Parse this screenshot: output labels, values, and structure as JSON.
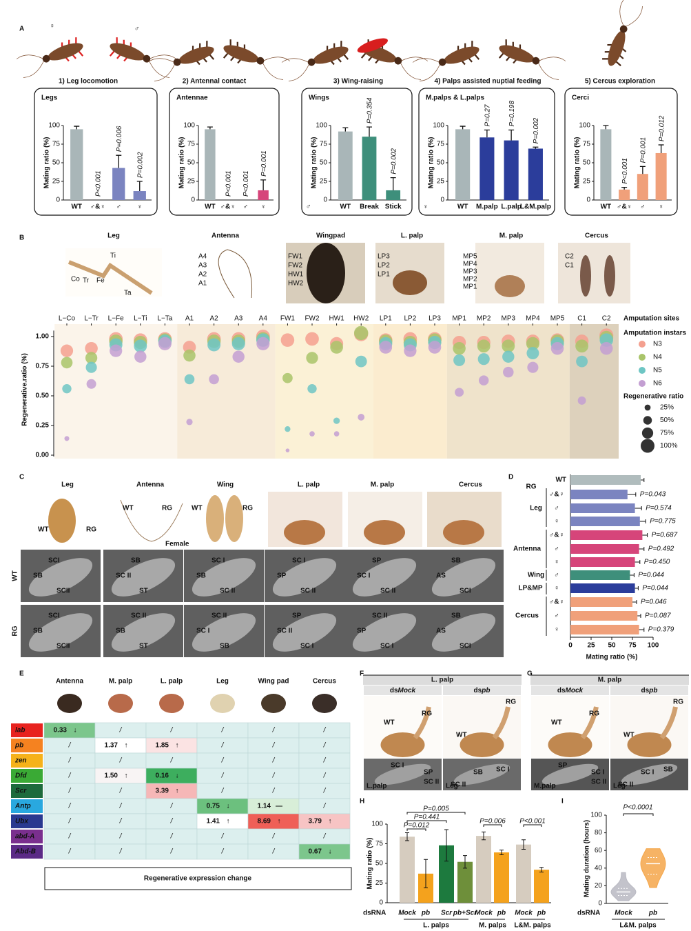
{
  "panel_letters": [
    "A",
    "B",
    "C",
    "D",
    "E",
    "F",
    "G",
    "H",
    "I"
  ],
  "panel_A": {
    "symbols": [
      "♀",
      "♂"
    ]
  },
  "chart_data": [
    {
      "type": "bar",
      "title": "1) Leg locomotion",
      "box_label": "Legs",
      "y_label": "Mating ratio (%)",
      "categories": [
        "WT",
        "♂&♀",
        "♂",
        "♀"
      ],
      "values": [
        95,
        0,
        43,
        12
      ],
      "errors": [
        4,
        0,
        17,
        13
      ],
      "p_values": [
        null,
        "P<0.001",
        "P=0.006",
        "P=0.002"
      ],
      "colors": [
        "#a9b6b8",
        "#7b84c0",
        "#7b84c0",
        "#7b84c0"
      ],
      "ylim": [
        0,
        100
      ],
      "yticks": [
        0,
        25,
        50,
        75,
        100
      ]
    },
    {
      "type": "bar",
      "title": "2) Antennal contact",
      "box_label": "Antennae",
      "y_label": "Mating ratio (%)",
      "categories": [
        "WT",
        "♂&♀",
        "♂",
        "♀"
      ],
      "values": [
        95,
        0,
        0,
        13
      ],
      "errors": [
        3,
        0,
        0,
        14
      ],
      "p_values": [
        null,
        "P<0.001",
        "P<0.001",
        "P=0.001"
      ],
      "colors": [
        "#a9b6b8",
        "#d6457a",
        "#d6457a",
        "#d6457a"
      ],
      "ylim": [
        0,
        100
      ],
      "yticks": [
        0,
        25,
        50,
        75,
        100
      ]
    },
    {
      "type": "bar",
      "title": "3) Wing-raising",
      "box_label": "Wings",
      "y_label": "Mating ratio (%)",
      "note": "♂",
      "categories": [
        "WT",
        "Break",
        "Stick"
      ],
      "values": [
        92,
        85,
        13
      ],
      "errors": [
        5,
        13,
        17
      ],
      "p_values": [
        null,
        "P=0.354",
        "P=0.002"
      ],
      "colors": [
        "#a9b6b8",
        "#3e8f7b",
        "#3e8f7b"
      ],
      "ylim": [
        0,
        100
      ],
      "yticks": [
        0,
        25,
        50,
        75,
        100
      ]
    },
    {
      "type": "bar",
      "title": "4) Palps assisted nuptial feeding",
      "box_label": "M.palps & L.palps",
      "y_label": "Mating ratio (%)",
      "note": "♀",
      "categories": [
        "WT",
        "M.palp",
        "L.palp",
        "L&M.palp"
      ],
      "values": [
        95,
        84,
        80,
        69
      ],
      "errors": [
        4,
        10,
        14,
        2
      ],
      "p_values": [
        null,
        "P=0.27",
        "P=0.198",
        "P=0.002"
      ],
      "colors": [
        "#a9b6b8",
        "#2b3d9b",
        "#2b3d9b",
        "#2b3d9b"
      ],
      "ylim": [
        0,
        100
      ],
      "yticks": [
        0,
        25,
        50,
        75,
        100
      ]
    },
    {
      "type": "bar",
      "title": "5) Cercus exploration",
      "box_label": "Cerci",
      "y_label": "Mating ratio (%)",
      "categories": [
        "WT",
        "♂&♀",
        "♂",
        "♀"
      ],
      "values": [
        95,
        14,
        35,
        63
      ],
      "errors": [
        5,
        3,
        10,
        11
      ],
      "p_values": [
        null,
        "P<0.001",
        "P=0.001",
        "P=0.012"
      ],
      "colors": [
        "#a9b6b8",
        "#f0a07a",
        "#f0a07a",
        "#f0a07a"
      ],
      "ylim": [
        0,
        100
      ],
      "yticks": [
        0,
        25,
        50,
        75,
        100
      ]
    },
    {
      "type": "bubble",
      "y_label": "Regenerative.ratio (%)",
      "x_label": "Amputation sites",
      "legend_title": "Amputation instars",
      "size_title": "Regenerative ratio",
      "categories": [
        "L−Co",
        "L−Tr",
        "L−Fe",
        "L−Ti",
        "L−Ta",
        "A1",
        "A2",
        "A3",
        "A4",
        "FW1",
        "FW2",
        "HW1",
        "HW2",
        "LP1",
        "LP2",
        "LP3",
        "MP1",
        "MP2",
        "MP3",
        "MP4",
        "MP5",
        "C1",
        "C2"
      ],
      "series": [
        {
          "name": "N3",
          "color": "#f4a08f",
          "values": [
            0.88,
            0.9,
            0.98,
            0.97,
            0.98,
            0.91,
            0.98,
            0.98,
            1.0,
            0.97,
            0.98,
            0.94,
            1.02,
            0.97,
            0.98,
            0.98,
            0.95,
            0.95,
            0.96,
            0.96,
            0.97,
            0.96,
            1.01
          ]
        },
        {
          "name": "N4",
          "color": "#a9c46a",
          "values": [
            0.78,
            0.82,
            0.96,
            0.95,
            0.97,
            0.84,
            0.96,
            0.96,
            0.98,
            0.65,
            0.82,
            0.91,
            1.03,
            0.96,
            0.95,
            0.97,
            0.9,
            0.92,
            0.92,
            0.94,
            0.96,
            0.92,
            0.99
          ]
        },
        {
          "name": "N5",
          "color": "#6ec6c4",
          "values": [
            0.56,
            0.74,
            0.93,
            0.92,
            0.96,
            0.64,
            0.93,
            0.94,
            0.97,
            0.22,
            0.56,
            0.29,
            0.79,
            0.94,
            0.93,
            0.95,
            0.8,
            0.81,
            0.83,
            0.86,
            0.94,
            0.79,
            0.97
          ]
        },
        {
          "name": "N6",
          "color": "#c39fd2",
          "values": [
            0.14,
            0.6,
            0.88,
            0.83,
            0.94,
            0.28,
            0.64,
            0.83,
            0.94,
            0.04,
            0.18,
            0.18,
            0.32,
            0.91,
            0.88,
            0.91,
            0.53,
            0.63,
            0.7,
            0.74,
            0.9,
            0.46,
            0.9
          ]
        }
      ],
      "ylim": [
        0,
        1.05
      ],
      "yticks": [
        {
          "value": 0,
          "label": "0.00"
        },
        {
          "value": 0.25,
          "label": "0.25"
        },
        {
          "value": 0.5,
          "label": "0.50"
        },
        {
          "value": 0.75,
          "label": "0.75"
        },
        {
          "value": 1,
          "label": "1.00"
        }
      ],
      "size_legend": [
        {
          "value": 25,
          "label": "25%"
        },
        {
          "value": 50,
          "label": "50%"
        },
        {
          "value": 75,
          "label": "75%"
        },
        {
          "value": 100,
          "label": "100%"
        }
      ]
    },
    {
      "type": "hbar",
      "x_label": "Mating ratio (%)",
      "group_labels": [
        "RG",
        "Leg",
        "Antenna",
        "Wing",
        "LP&MP",
        "Cercus"
      ],
      "categories": [
        "WT",
        "♂&♀",
        "♂",
        "♀",
        "♂&♀",
        "♂",
        "♀",
        "♂",
        "♀",
        "♂&♀",
        "♂",
        "♀"
      ],
      "values": [
        85,
        69,
        78,
        84,
        87,
        83,
        78,
        72,
        78,
        75,
        81,
        83
      ],
      "errors": [
        4,
        10,
        8,
        7,
        6,
        6,
        6,
        5,
        4,
        5,
        4,
        6
      ],
      "p_values": [
        null,
        "P=0.043",
        "P=0.574",
        "P=0.775",
        "P=0.687",
        "P=0.492",
        "P=0.450",
        "P=0.044",
        "P=0.044",
        "P=0.046",
        "P=0.087",
        "P=0.379"
      ],
      "colors": [
        "#b0bcbd",
        "#7b84c0",
        "#7b84c0",
        "#7b84c0",
        "#d6457a",
        "#d6457a",
        "#d6457a",
        "#3e8f7b",
        "#2b3d9b",
        "#f0a07a",
        "#f0a07a",
        "#f0a07a"
      ],
      "xlim": [
        0,
        100
      ],
      "xticks": [
        0,
        25,
        50,
        75,
        100
      ]
    },
    {
      "type": "bar",
      "y_label": "Mating ratio (%)",
      "x_label": "dsRNA",
      "categories": [
        "Mock",
        "pb",
        "Scr",
        "pb+Scr",
        "Mock",
        "pb",
        "Mock",
        "pb"
      ],
      "groups": [
        "L. palps",
        "M. palps",
        "L&M. palps"
      ],
      "values": [
        84,
        37,
        73,
        52,
        85,
        64,
        74,
        42
      ],
      "errors": [
        5,
        18,
        20,
        8,
        5,
        3,
        6,
        3
      ],
      "colors": [
        "#d6ccbf",
        "#f4a21d",
        "#1d7a3e",
        "#6e8f3a",
        "#d6ccbf",
        "#f4a21d",
        "#d6ccbf",
        "#f4a21d"
      ],
      "p_values": [
        "P=0.005",
        "P=0.441",
        "P=0.012",
        "P=0.006",
        "P<0.001"
      ],
      "ylim": [
        0,
        100
      ],
      "yticks": [
        0,
        25,
        50,
        75,
        100
      ]
    },
    {
      "type": "violin",
      "y_label": "Mating duration (hours)",
      "x_label": "dsRNA",
      "group": "L&M. palps",
      "p_value": "P<0.0001",
      "series": [
        {
          "name": "Mock",
          "color": "#b9b9c2",
          "min": 3,
          "q1": 9,
          "median": 13,
          "q3": 17,
          "max": 35
        },
        {
          "name": "pb",
          "color": "#f4a64a",
          "min": 18,
          "q1": 33,
          "median": 45,
          "q3": 52,
          "max": 62
        }
      ],
      "ylim": [
        0,
        100
      ],
      "yticks": [
        0,
        20,
        40,
        60,
        80,
        100
      ]
    }
  ],
  "panel_B": {
    "groups": [
      "Leg",
      "Antenna",
      "Wingpad",
      "L. palp",
      "M. palp",
      "Cercus"
    ],
    "annotations": [
      [
        "Co",
        "Tr",
        "Fe",
        "Ti",
        "Ta"
      ],
      [
        "A4",
        "A3",
        "A2",
        "A1"
      ],
      [
        "FW1",
        "FW2",
        "HW1",
        "HW2"
      ],
      [
        "LP3",
        "LP2",
        "LP1"
      ],
      [
        "MP5",
        "MP4",
        "MP3",
        "MP2",
        "MP1"
      ],
      [
        "C2",
        "C1"
      ]
    ]
  },
  "panel_C": {
    "groups": [
      "Leg",
      "Antenna",
      "Wing",
      "L. palp",
      "M. palp",
      "Cercus"
    ],
    "photo_labels": [
      [
        "WT",
        "RG"
      ],
      [
        "WT",
        "RG",
        "Female"
      ],
      [
        "WT",
        "RG"
      ],
      [],
      [],
      []
    ],
    "rows": [
      "WT",
      "RG"
    ],
    "sem": [
      [
        [
          "SCI",
          "SB",
          "SCII"
        ],
        [
          "SB",
          "SC II",
          "ST"
        ],
        [
          "SC I",
          "SB",
          "SC II"
        ],
        [
          "SC I",
          "SP",
          "SC II"
        ],
        [
          "SP",
          "SC I",
          "SC II"
        ],
        [
          "SB",
          "AS",
          "SCI"
        ]
      ],
      [
        [
          "SCI",
          "SB",
          "SCII"
        ],
        [
          "SC II",
          "SB",
          "ST"
        ],
        [
          "SC II",
          "SC I",
          "SB"
        ],
        [
          "SP",
          "SC II",
          "SC I"
        ],
        [
          "SC II",
          "SP",
          "SC I"
        ],
        [
          "SB",
          "AS",
          "SCI"
        ]
      ]
    ]
  },
  "table": {
    "columns": [
      "Antenna",
      "M. palp",
      "L. palp",
      "Leg",
      "Wing pad",
      "Cercus"
    ],
    "rows": [
      {
        "gene": "lab",
        "color": "#e8231f",
        "cells": [
          {
            "text": "0.33",
            "arrow": "↓",
            "color": "#7cc68c"
          },
          {
            "text": "/"
          },
          {
            "text": "/"
          },
          {
            "text": "/"
          },
          {
            "text": "/"
          },
          {
            "text": "/"
          }
        ]
      },
      {
        "gene": "pb",
        "color": "#f58220",
        "cells": [
          {
            "text": "/"
          },
          {
            "text": "1.37",
            "arrow": "↑",
            "color": "#ffffff"
          },
          {
            "text": "1.85",
            "arrow": "↑",
            "color": "#fbe3e3"
          },
          {
            "text": "/"
          },
          {
            "text": "/"
          },
          {
            "text": "/"
          }
        ]
      },
      {
        "gene": "zen",
        "color": "#f6b21a",
        "cells": [
          {
            "text": "/"
          },
          {
            "text": "/"
          },
          {
            "text": "/"
          },
          {
            "text": "/"
          },
          {
            "text": "/"
          },
          {
            "text": "/"
          }
        ]
      },
      {
        "gene": "Dfd",
        "color": "#3aaa35",
        "cells": [
          {
            "text": "/"
          },
          {
            "text": "1.50",
            "arrow": "↑",
            "color": "#f8f4f4"
          },
          {
            "text": "0.16",
            "arrow": "↓",
            "color": "#3dae5e"
          },
          {
            "text": "/"
          },
          {
            "text": "/"
          },
          {
            "text": "/"
          }
        ]
      },
      {
        "gene": "Scr",
        "color": "#1d6b3c",
        "cells": [
          {
            "text": "/"
          },
          {
            "text": "/"
          },
          {
            "text": "3.39",
            "arrow": "↑",
            "color": "#f6b7b7"
          },
          {
            "text": "/"
          },
          {
            "text": "/"
          },
          {
            "text": "/"
          }
        ]
      },
      {
        "gene": "Antp",
        "color": "#29a8df",
        "cells": [
          {
            "text": "/"
          },
          {
            "text": "/"
          },
          {
            "text": "/"
          },
          {
            "text": "0.75",
            "arrow": "↓",
            "color": "#6cc07e"
          },
          {
            "text": "1.14",
            "arrow": "—",
            "color": "#d8eed8"
          },
          {
            "text": "/"
          }
        ]
      },
      {
        "gene": "Ubx",
        "color": "#2a3990",
        "cells": [
          {
            "text": "/"
          },
          {
            "text": "/"
          },
          {
            "text": "/"
          },
          {
            "text": "1.41",
            "arrow": "↑",
            "color": "#ffffff"
          },
          {
            "text": "8.69",
            "arrow": "↑",
            "color": "#ef5f57"
          },
          {
            "text": "3.79",
            "arrow": "↑",
            "color": "#f7c4c4"
          }
        ]
      },
      {
        "gene": "abd-A",
        "color": "#7a2f8e",
        "cells": [
          {
            "text": "/"
          },
          {
            "text": "/"
          },
          {
            "text": "/"
          },
          {
            "text": "/"
          },
          {
            "text": "/"
          },
          {
            "text": "/"
          }
        ]
      },
      {
        "gene": "Abd-B",
        "color": "#5b2a86",
        "cells": [
          {
            "text": "/"
          },
          {
            "text": "/"
          },
          {
            "text": "/"
          },
          {
            "text": "/"
          },
          {
            "text": "/"
          },
          {
            "text": "0.67",
            "arrow": "↓",
            "color": "#7cc68c"
          }
        ]
      }
    ],
    "footer": "Regenerative expression change"
  },
  "panel_F": {
    "title": "L. palp",
    "columns": [
      {
        "prefix": "ds",
        "gene": "Mock"
      },
      {
        "prefix": "ds",
        "gene": "pb"
      }
    ],
    "photo_labels": [
      [
        "WT",
        "RG"
      ],
      [
        "RG",
        "WT"
      ]
    ],
    "sem_labels": [
      [
        "SC I",
        "SP",
        "SC II"
      ],
      [
        "SB",
        "SC I",
        "SC II"
      ]
    ],
    "sem_titles": [
      "L.palp",
      "Leg"
    ]
  },
  "panel_G": {
    "title": "M. palp",
    "columns": [
      {
        "prefix": "ds",
        "gene": "Mock"
      },
      {
        "prefix": "ds",
        "gene": "pb"
      }
    ],
    "photo_labels": [
      [
        "WT",
        "RG"
      ],
      [
        "RG",
        "WT"
      ]
    ],
    "sem_labels": [
      [
        "SP",
        "SC I",
        "SC II"
      ],
      [
        "SC I",
        "SB",
        "SC II"
      ]
    ],
    "sem_titles": [
      "M.palp",
      "Leg"
    ]
  }
}
